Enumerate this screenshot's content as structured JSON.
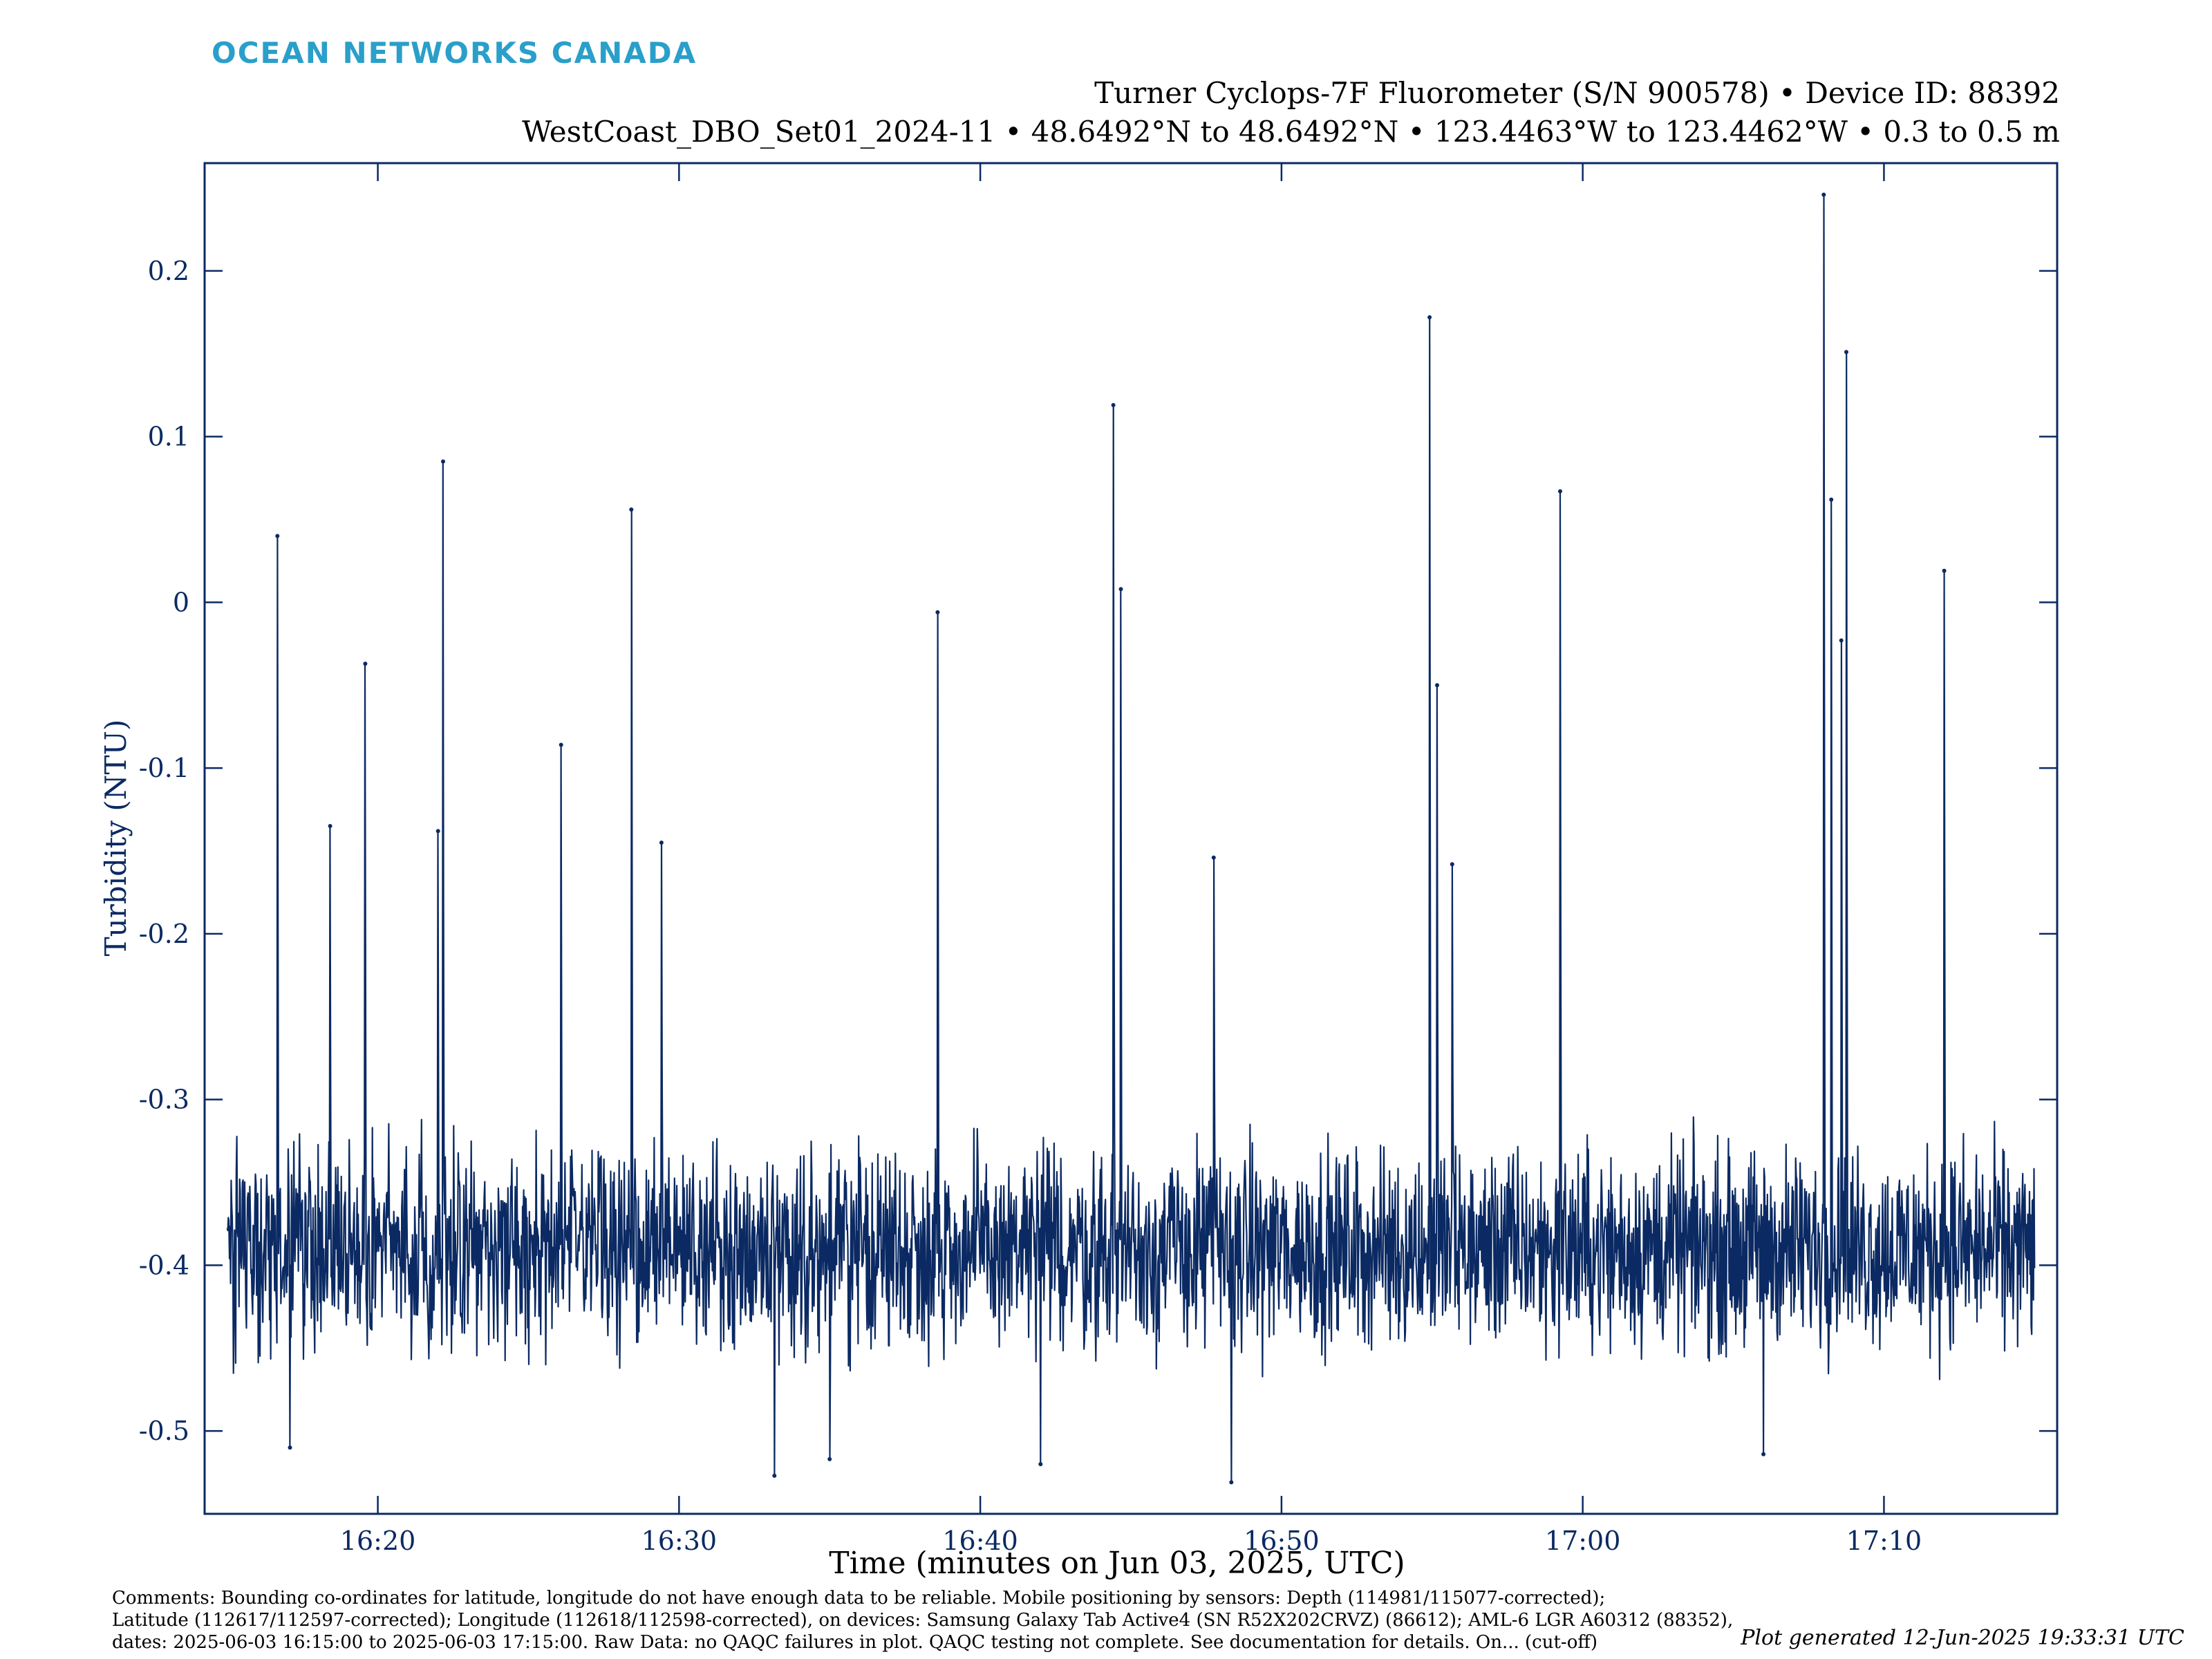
{
  "header": {
    "brand": "OCEAN NETWORKS CANADA",
    "title_line1": "Turner Cyclops-7F Fluorometer (S/N 900578) • Device ID: 88392",
    "title_line2": "WestCoast_DBO_Set01_2024-11 • 48.6492°N to 48.6492°N • 123.4463°W to 123.4462°W • 0.3 to 0.5 m"
  },
  "chart_data": {
    "type": "line",
    "title": "Turner Cyclops-7F Fluorometer (S/N 900578) • Device ID: 88392",
    "subtitle": "WestCoast_DBO_Set01_2024-11 • 48.6492°N to 48.6492°N • 123.4463°W to 123.4462°W • 0.3 to 0.5 m",
    "xlabel": "Time (minutes on Jun 03, 2025, UTC)",
    "ylabel": "Turbidity (NTU)",
    "xlim": [
      "16:14:15",
      "17:15:45"
    ],
    "ylim": [
      -0.55,
      0.265
    ],
    "x_ticks": [
      "16:20",
      "16:30",
      "16:40",
      "16:50",
      "17:00",
      "17:10"
    ],
    "y_ticks": [
      0.2,
      0.1,
      0,
      -0.1,
      -0.2,
      -0.3,
      -0.4,
      -0.5
    ],
    "y_tick_labels": [
      "0.2",
      "0.1",
      "0",
      "-0.1",
      "-0.2",
      "-0.3",
      "-0.4",
      "-0.5"
    ],
    "grid": false,
    "line_color": "#0b2a63",
    "series": [
      {
        "baseline": {
          "time_start": "16:15:00",
          "time_end": "17:15:00",
          "typical_min": -0.47,
          "typical_max": -0.32,
          "center": -0.39
        },
        "spikes": [
          {
            "time": "16:16:40",
            "value": 0.04
          },
          {
            "time": "16:18:25",
            "value": -0.135
          },
          {
            "time": "16:19:35",
            "value": -0.037
          },
          {
            "time": "16:22:00",
            "value": -0.138
          },
          {
            "time": "16:22:10",
            "value": 0.085
          },
          {
            "time": "16:26:05",
            "value": -0.086
          },
          {
            "time": "16:28:25",
            "value": 0.056
          },
          {
            "time": "16:29:25",
            "value": -0.145
          },
          {
            "time": "16:38:35",
            "value": -0.006
          },
          {
            "time": "16:44:25",
            "value": 0.119
          },
          {
            "time": "16:44:40",
            "value": 0.008
          },
          {
            "time": "16:47:45",
            "value": -0.154
          },
          {
            "time": "16:54:55",
            "value": 0.172
          },
          {
            "time": "16:55:10",
            "value": -0.05
          },
          {
            "time": "16:55:40",
            "value": -0.158
          },
          {
            "time": "16:59:15",
            "value": 0.067
          },
          {
            "time": "17:08:00",
            "value": 0.246
          },
          {
            "time": "17:08:15",
            "value": 0.062
          },
          {
            "time": "17:08:35",
            "value": -0.023
          },
          {
            "time": "17:08:45",
            "value": 0.151
          },
          {
            "time": "17:12:00",
            "value": 0.019
          }
        ],
        "dips": [
          {
            "time": "16:17:05",
            "value": -0.51
          },
          {
            "time": "16:33:10",
            "value": -0.527
          },
          {
            "time": "16:35:00",
            "value": -0.517
          },
          {
            "time": "16:42:00",
            "value": -0.52
          },
          {
            "time": "16:48:20",
            "value": -0.531
          },
          {
            "time": "17:06:00",
            "value": -0.514
          }
        ]
      }
    ]
  },
  "comments": {
    "line1": "Comments: Bounding co-ordinates for latitude, longitude do not have enough data to be reliable. Mobile positioning by sensors: Depth (114981/115077-corrected);",
    "line2": "Latitude (112617/112597-corrected); Longitude (112618/112598-corrected), on devices: Samsung Galaxy Tab Active4 (SN R52X202CRVZ) (86612); AML-6 LGR A60312 (88352),",
    "line3": "dates: 2025-06-03 16:15:00 to 2025-06-03 17:15:00. Raw Data: no QAQC failures in plot. QAQC testing not complete. See documentation for details. On... (cut-off)"
  },
  "footer": {
    "generated": "Plot generated 12-Jun-2025 19:33:31 UTC"
  }
}
